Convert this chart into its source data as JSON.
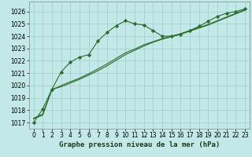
{
  "title": "Graphe pression niveau de la mer (hPa)",
  "bg_color": "#c2e8e8",
  "grid_color": "#9ecece",
  "line_color": "#2d6e2d",
  "marker_color": "#2d6e2d",
  "ylim": [
    1016.5,
    1026.8
  ],
  "yticks": [
    1017,
    1018,
    1019,
    1020,
    1021,
    1022,
    1023,
    1024,
    1025,
    1026
  ],
  "xlim": [
    -0.5,
    23.5
  ],
  "xticks": [
    0,
    1,
    2,
    3,
    4,
    5,
    6,
    7,
    8,
    9,
    10,
    11,
    12,
    13,
    14,
    15,
    16,
    17,
    18,
    19,
    20,
    21,
    22,
    23
  ],
  "series_main": [
    1017.0,
    1018.1,
    1019.7,
    1021.1,
    1021.9,
    1022.3,
    1022.5,
    1023.6,
    1024.3,
    1024.85,
    1025.25,
    1025.0,
    1024.9,
    1024.45,
    1024.0,
    1024.0,
    1024.15,
    1024.45,
    1024.8,
    1025.2,
    1025.6,
    1025.85,
    1026.0,
    1026.2
  ],
  "series_trend1": [
    1017.3,
    1017.6,
    1019.7,
    1019.9,
    1020.2,
    1020.5,
    1020.85,
    1021.2,
    1021.6,
    1022.05,
    1022.5,
    1022.85,
    1023.2,
    1023.5,
    1023.75,
    1023.95,
    1024.15,
    1024.4,
    1024.65,
    1024.9,
    1025.2,
    1025.5,
    1025.8,
    1026.1
  ],
  "series_trend2": [
    1017.35,
    1017.7,
    1019.65,
    1020.0,
    1020.3,
    1020.6,
    1020.95,
    1021.35,
    1021.75,
    1022.2,
    1022.65,
    1022.95,
    1023.3,
    1023.55,
    1023.8,
    1024.0,
    1024.2,
    1024.45,
    1024.7,
    1024.95,
    1025.25,
    1025.55,
    1025.85,
    1026.15
  ],
  "tick_fontsize": 5.5,
  "title_fontsize": 6.5
}
